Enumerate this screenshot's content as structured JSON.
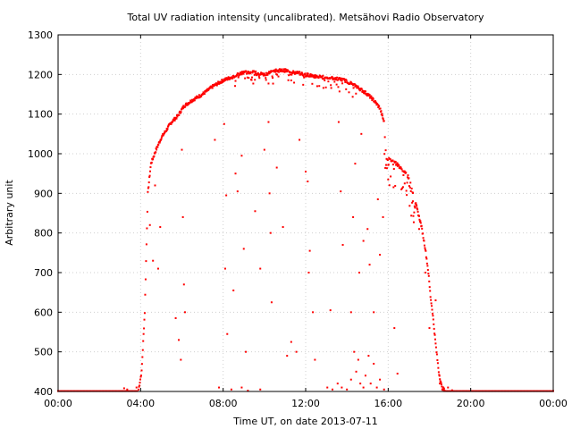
{
  "chart_data": {
    "type": "scatter",
    "title": "Total UV radiation intensity (uncalibrated). Metsähovi Radio Observatory",
    "xlabel": "Time UT, on date 2013-07-11",
    "ylabel": "Arbitrary unit",
    "xlim": [
      0,
      24
    ],
    "ylim": [
      400,
      1300
    ],
    "x_ticks": [
      0,
      4,
      8,
      12,
      16,
      20,
      24
    ],
    "x_tick_labels": [
      "00:00",
      "04:00",
      "08:00",
      "12:00",
      "16:00",
      "20:00",
      "00:00"
    ],
    "y_ticks": [
      400,
      500,
      600,
      700,
      800,
      900,
      1000,
      1100,
      1200,
      1300
    ],
    "y_tick_labels": [
      "400",
      "500",
      "600",
      "700",
      "800",
      "900",
      "1000",
      "1100",
      "1200",
      "1300"
    ],
    "grid": true,
    "color": "#ff0000",
    "envelope": [
      [
        3.9,
        405
      ],
      [
        4.05,
        450
      ],
      [
        4.2,
        600
      ],
      [
        4.35,
        900
      ],
      [
        4.5,
        975
      ],
      [
        4.75,
        1010
      ],
      [
        5.0,
        1040
      ],
      [
        5.25,
        1060
      ],
      [
        5.5,
        1080
      ],
      [
        5.8,
        1095
      ],
      [
        6.1,
        1120
      ],
      [
        6.5,
        1135
      ],
      [
        7.0,
        1150
      ],
      [
        7.5,
        1170
      ],
      [
        8.0,
        1185
      ],
      [
        8.5,
        1195
      ],
      [
        9.0,
        1205
      ],
      [
        9.5,
        1205
      ],
      [
        10.0,
        1200
      ],
      [
        10.5,
        1210
      ],
      [
        11.0,
        1210
      ],
      [
        11.5,
        1205
      ],
      [
        12.0,
        1200
      ],
      [
        12.5,
        1195
      ],
      [
        13.0,
        1192
      ],
      [
        13.5,
        1190
      ],
      [
        13.9,
        1185
      ],
      [
        14.3,
        1175
      ],
      [
        14.6,
        1165
      ],
      [
        15.0,
        1150
      ],
      [
        15.3,
        1135
      ],
      [
        15.6,
        1115
      ],
      [
        15.8,
        1080
      ],
      [
        15.9,
        990
      ],
      [
        16.1,
        985
      ],
      [
        16.4,
        975
      ],
      [
        16.7,
        960
      ],
      [
        17.0,
        940
      ],
      [
        17.2,
        900
      ],
      [
        17.4,
        860
      ],
      [
        17.6,
        820
      ],
      [
        17.8,
        760
      ],
      [
        17.95,
        700
      ],
      [
        18.05,
        640
      ],
      [
        18.15,
        600
      ],
      [
        18.3,
        520
      ],
      [
        18.45,
        450
      ],
      [
        18.6,
        410
      ],
      [
        18.75,
        402
      ]
    ],
    "dropouts": [
      [
        4.45,
        820
      ],
      [
        4.6,
        730
      ],
      [
        4.7,
        920
      ],
      [
        4.85,
        710
      ],
      [
        4.95,
        815
      ],
      [
        5.7,
        585
      ],
      [
        5.85,
        530
      ],
      [
        5.95,
        480
      ],
      [
        6.0,
        1010
      ],
      [
        6.05,
        840
      ],
      [
        6.1,
        670
      ],
      [
        6.15,
        600
      ],
      [
        7.6,
        1035
      ],
      [
        8.05,
        1075
      ],
      [
        8.1,
        710
      ],
      [
        8.15,
        895
      ],
      [
        8.2,
        545
      ],
      [
        8.5,
        655
      ],
      [
        8.6,
        950
      ],
      [
        8.7,
        905
      ],
      [
        8.9,
        995
      ],
      [
        9.0,
        760
      ],
      [
        9.1,
        500
      ],
      [
        9.55,
        855
      ],
      [
        9.8,
        710
      ],
      [
        10.0,
        1010
      ],
      [
        10.2,
        1080
      ],
      [
        10.25,
        900
      ],
      [
        10.3,
        800
      ],
      [
        10.35,
        625
      ],
      [
        10.6,
        965
      ],
      [
        10.9,
        815
      ],
      [
        11.1,
        490
      ],
      [
        11.3,
        525
      ],
      [
        11.55,
        500
      ],
      [
        11.7,
        1035
      ],
      [
        12.0,
        955
      ],
      [
        12.1,
        930
      ],
      [
        12.15,
        700
      ],
      [
        12.2,
        755
      ],
      [
        12.35,
        600
      ],
      [
        12.45,
        480
      ],
      [
        13.2,
        605
      ],
      [
        13.6,
        1080
      ],
      [
        13.7,
        905
      ],
      [
        13.8,
        770
      ],
      [
        14.2,
        600
      ],
      [
        14.3,
        840
      ],
      [
        14.4,
        975
      ],
      [
        14.6,
        700
      ],
      [
        14.7,
        1050
      ],
      [
        14.8,
        780
      ],
      [
        15.0,
        810
      ],
      [
        15.1,
        720
      ],
      [
        15.3,
        600
      ],
      [
        15.5,
        885
      ],
      [
        15.6,
        745
      ],
      [
        15.75,
        840
      ],
      [
        16.0,
        935
      ],
      [
        16.3,
        560
      ],
      [
        16.45,
        445
      ],
      [
        16.8,
        925
      ],
      [
        17.2,
        880
      ],
      [
        17.5,
        810
      ],
      [
        17.8,
        700
      ],
      [
        18.0,
        560
      ],
      [
        18.3,
        630
      ]
    ],
    "low_cluster": [
      [
        7.8,
        410
      ],
      [
        8.4,
        405
      ],
      [
        8.9,
        410
      ],
      [
        9.2,
        402
      ],
      [
        9.8,
        405
      ],
      [
        13.05,
        410
      ],
      [
        13.3,
        405
      ],
      [
        13.55,
        420
      ],
      [
        13.75,
        410
      ],
      [
        14.0,
        405
      ],
      [
        14.2,
        430
      ],
      [
        14.35,
        500
      ],
      [
        14.45,
        450
      ],
      [
        14.55,
        480
      ],
      [
        14.65,
        420
      ],
      [
        14.8,
        410
      ],
      [
        14.9,
        440
      ],
      [
        15.05,
        490
      ],
      [
        15.15,
        420
      ],
      [
        15.3,
        470
      ],
      [
        15.45,
        410
      ],
      [
        15.6,
        430
      ],
      [
        15.8,
        405
      ],
      [
        18.5,
        420
      ],
      [
        18.7,
        405
      ],
      [
        18.9,
        410
      ],
      [
        19.1,
        403
      ]
    ],
    "baseline": 401,
    "baseline_blips": [
      [
        3.2,
        408
      ],
      [
        3.35,
        405
      ],
      [
        3.8,
        410
      ]
    ]
  }
}
